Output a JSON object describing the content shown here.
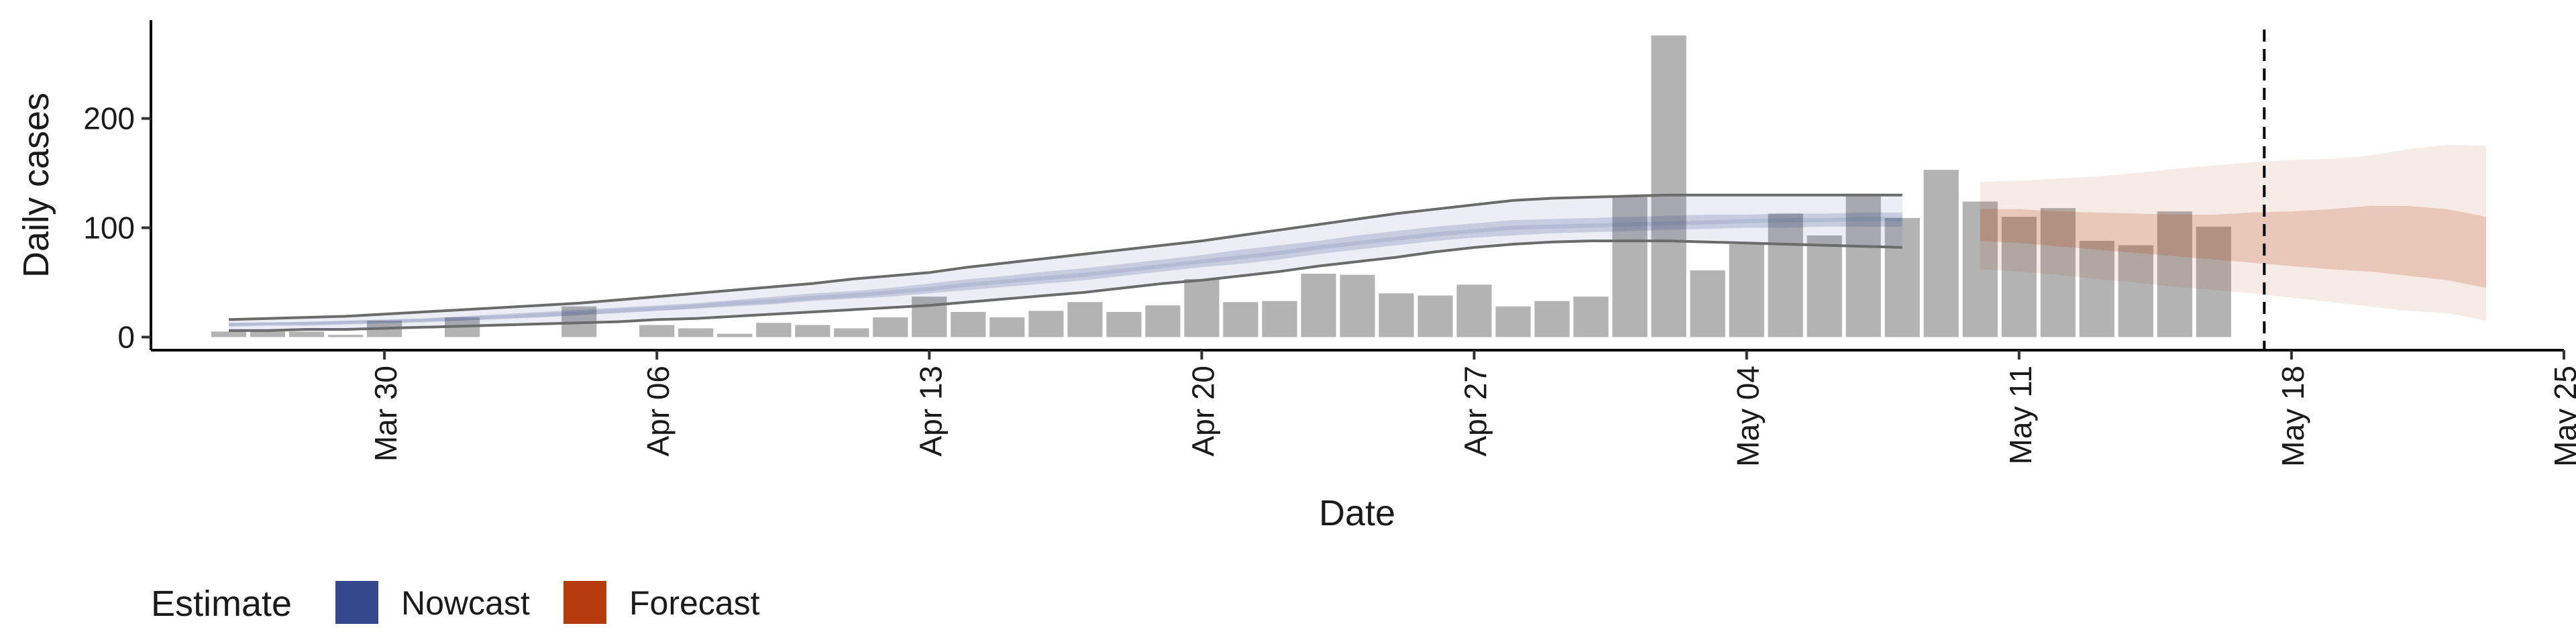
{
  "chart_data": {
    "type": "bar",
    "xlabel": "Date",
    "ylabel": "Daily cases",
    "x_ticks": [
      "Mar 30",
      "Apr 06",
      "Apr 13",
      "Apr 20",
      "Apr 27",
      "May 04",
      "May 11",
      "May 18",
      "May 25"
    ],
    "y_ticks": [
      "0",
      "100",
      "200"
    ],
    "xlim": [
      "2020-03-24",
      "2020-05-25"
    ],
    "ylim": [
      -12,
      290
    ],
    "grid": false,
    "legend": {
      "title": "Estimate",
      "placement": "bottom-left",
      "entries": [
        {
          "label": "Nowcast",
          "color": "#34488b"
        },
        {
          "label": "Forecast",
          "color": "#b53a0c"
        }
      ]
    },
    "reference_line": {
      "date": "2020-05-17",
      "style": "dashed"
    },
    "bar_color": "#b3b3b3",
    "bars": {
      "start_date": "2020-03-26",
      "values": [
        5,
        5,
        5,
        2,
        15,
        0,
        18,
        0,
        0,
        28,
        0,
        11,
        8,
        3,
        13,
        11,
        8,
        18,
        37,
        23,
        18,
        24,
        32,
        23,
        29,
        53,
        32,
        33,
        58,
        57,
        40,
        38,
        48,
        28,
        33,
        37,
        128,
        276,
        61,
        85,
        113,
        93,
        131,
        109,
        153,
        124,
        110,
        118,
        88,
        84,
        115,
        101
      ]
    },
    "nowcast": {
      "color": "#34488b",
      "start_date": "2020-03-26",
      "median": [
        11,
        12,
        12,
        13,
        14,
        15,
        17,
        18,
        20,
        22,
        24,
        26,
        28,
        31,
        33,
        36,
        38,
        41,
        44,
        48,
        51,
        54,
        57,
        61,
        65,
        69,
        73,
        77,
        82,
        86,
        90,
        94,
        97,
        100,
        101,
        102,
        103,
        104,
        105,
        106,
        107,
        107,
        108,
        108
      ],
      "inner_lower": [
        10,
        11,
        11,
        12,
        13,
        14,
        15,
        17,
        18,
        20,
        22,
        24,
        26,
        28,
        30,
        33,
        35,
        37,
        40,
        43,
        46,
        49,
        52,
        56,
        60,
        64,
        67,
        71,
        76,
        80,
        84,
        88,
        91,
        93,
        95,
        96,
        97,
        98,
        99,
        100,
        100,
        101,
        101,
        101
      ],
      "inner_upper": [
        13,
        13,
        14,
        15,
        16,
        17,
        19,
        21,
        23,
        25,
        27,
        29,
        31,
        34,
        37,
        40,
        42,
        45,
        49,
        53,
        56,
        60,
        63,
        67,
        71,
        75,
        80,
        84,
        88,
        93,
        97,
        101,
        104,
        107,
        108,
        109,
        110,
        111,
        112,
        112,
        113,
        113,
        114,
        114
      ],
      "outer_lower": [
        6,
        6,
        7,
        7,
        8,
        9,
        10,
        11,
        12,
        13,
        14,
        16,
        17,
        19,
        21,
        23,
        25,
        27,
        29,
        32,
        35,
        38,
        41,
        45,
        49,
        52,
        56,
        60,
        65,
        69,
        73,
        78,
        82,
        85,
        87,
        88,
        88,
        88,
        87,
        86,
        85,
        84,
        83,
        82
      ],
      "outer_upper": [
        16,
        17,
        18,
        19,
        21,
        23,
        25,
        27,
        29,
        31,
        34,
        37,
        40,
        43,
        46,
        49,
        53,
        56,
        59,
        64,
        68,
        72,
        76,
        80,
        84,
        88,
        93,
        98,
        103,
        108,
        113,
        117,
        121,
        125,
        127,
        128,
        129,
        130,
        130,
        130,
        130,
        130,
        130,
        130
      ]
    },
    "forecast": {
      "color": "#b53a0c",
      "start_date": "2020-05-10",
      "median": [
        103,
        102,
        100,
        98,
        96,
        94,
        92,
        90,
        88,
        86,
        84,
        82,
        81,
        80
      ],
      "inner_lower": [
        88,
        86,
        83,
        80,
        77,
        74,
        71,
        68,
        65,
        62,
        60,
        56,
        52,
        45
      ],
      "inner_upper": [
        117,
        117,
        115,
        114,
        113,
        112,
        112,
        114,
        115,
        117,
        120,
        120,
        117,
        110
      ],
      "outer_lower": [
        62,
        60,
        57,
        53,
        50,
        46,
        43,
        40,
        36,
        32,
        28,
        24,
        22,
        15
      ],
      "outer_upper": [
        142,
        143,
        145,
        147,
        150,
        154,
        157,
        160,
        162,
        163,
        166,
        172,
        176,
        175
      ]
    }
  }
}
